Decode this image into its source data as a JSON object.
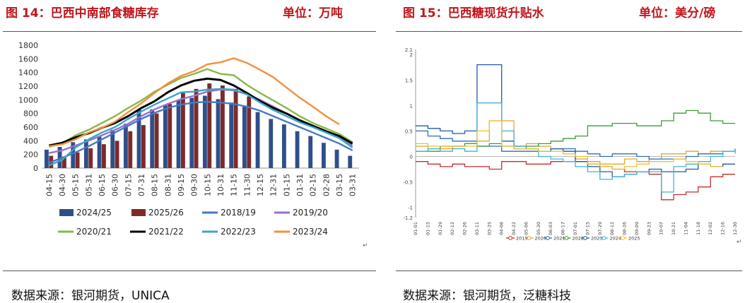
{
  "left": {
    "title": "图 14：巴西中南部食糖库存",
    "unit": "单位：万吨",
    "source": "数据来源：银河期货，UNICA",
    "corner_mark": "↵"
  },
  "right": {
    "title": "图 15：巴西糖现货升贴水",
    "unit": "单位：美分/磅",
    "source": "数据来源：银河期货，泛糖科技",
    "corner_mark": "↵"
  },
  "chart_data": [
    {
      "type": "bar+line",
      "title": "巴西中南部食糖库存",
      "ylabel": "万吨",
      "ylim": [
        0,
        1800
      ],
      "yticks": [
        0,
        200,
        400,
        600,
        800,
        1000,
        1200,
        1400,
        1600,
        1800
      ],
      "categories": [
        "04-15",
        "04-30",
        "05-15",
        "05-31",
        "06-15",
        "06-30",
        "07-15",
        "07-31",
        "08-15",
        "08-31",
        "09-15",
        "09-30",
        "10-15",
        "10-31",
        "11-15",
        "11-30",
        "12-15",
        "12-31",
        "01-15",
        "01-31",
        "02-15",
        "02-28",
        "03-15",
        "03-31"
      ],
      "bar_series": [
        {
          "name": "2024/25",
          "color": "#2f4f8a",
          "values": [
            270,
            310,
            380,
            420,
            470,
            560,
            650,
            860,
            860,
            920,
            1000,
            1030,
            1060,
            1010,
            960,
            900,
            820,
            720,
            640,
            540,
            470,
            370,
            270,
            180
          ]
        },
        {
          "name": "2025/26",
          "color": "#7d2a2a",
          "values": [
            180,
            170,
            230,
            290,
            350,
            400,
            540,
            630,
            800,
            940,
            1100,
            1160,
            1240,
            1210,
            1160,
            1050,
            null,
            null,
            null,
            null,
            null,
            null,
            null,
            null
          ]
        }
      ],
      "line_series": [
        {
          "name": "2018/19",
          "color": "#4a78c0",
          "values": [
            80,
            150,
            230,
            320,
            420,
            520,
            620,
            720,
            810,
            880,
            930,
            960,
            970,
            960,
            940,
            900,
            840,
            760,
            680,
            600,
            520,
            440,
            360,
            260
          ]
        },
        {
          "name": "2019/20",
          "color": "#9b6fd0",
          "values": [
            220,
            260,
            330,
            400,
            480,
            560,
            650,
            760,
            860,
            940,
            1010,
            1060,
            1120,
            1150,
            1140,
            1080,
            1000,
            900,
            800,
            700,
            610,
            520,
            440,
            330
          ]
        },
        {
          "name": "2020/21",
          "color": "#8ab848",
          "values": [
            310,
            360,
            480,
            560,
            660,
            760,
            880,
            990,
            1120,
            1220,
            1320,
            1380,
            1450,
            1380,
            1360,
            1220,
            1100,
            990,
            880,
            760,
            660,
            580,
            500,
            380
          ]
        },
        {
          "name": "2021/22",
          "color": "#000000",
          "values": [
            330,
            370,
            450,
            510,
            590,
            660,
            760,
            880,
            980,
            1110,
            1210,
            1280,
            1310,
            1290,
            1210,
            1100,
            980,
            880,
            800,
            700,
            620,
            540,
            470,
            360
          ]
        },
        {
          "name": "2022/23",
          "color": "#39a6c8",
          "values": [
            40,
            120,
            300,
            420,
            520,
            600,
            720,
            830,
            930,
            1020,
            1110,
            1120,
            1150,
            1160,
            1150,
            1080,
            960,
            850,
            760,
            670,
            600,
            520,
            440,
            300
          ]
        },
        {
          "name": "2023/24",
          "color": "#f2903c",
          "values": [
            320,
            350,
            420,
            520,
            590,
            680,
            820,
            950,
            1100,
            1240,
            1350,
            1420,
            1520,
            1550,
            1610,
            1540,
            1440,
            1330,
            1180,
            1030,
            900,
            760,
            640,
            null
          ]
        }
      ]
    },
    {
      "type": "line",
      "title": "巴西糖现货升贴水",
      "ylabel": "美分/磅",
      "ylim": [
        -1.2,
        2.1
      ],
      "yticks": [
        2.1,
        2,
        1.5,
        1,
        0.5,
        0,
        -0.5,
        -1,
        -1.2
      ],
      "ytick_labels": [
        "2.1",
        "2",
        "1.5",
        "1",
        "0.5",
        "0",
        "-0.5",
        "-1",
        "-1.2"
      ],
      "categories": [
        "01-01",
        "01-15",
        "01-29",
        "02-12",
        "02-26",
        "03-11",
        "03-25",
        "04-08",
        "04-22",
        "05-06",
        "05-20",
        "06-03",
        "06-17",
        "07-01",
        "07-15",
        "07-29",
        "08-12",
        "08-26",
        "09-09",
        "09-23",
        "10-07",
        "10-21",
        "11-04",
        "11-18",
        "12-02",
        "12-16",
        "12-30"
      ],
      "series": [
        {
          "name": "2019",
          "color": "#c0302e",
          "values": [
            -0.1,
            -0.15,
            -0.2,
            -0.15,
            -0.2,
            -0.2,
            -0.25,
            -0.1,
            -0.1,
            -0.15,
            -0.15,
            -0.1,
            -0.1,
            -0.1,
            -0.15,
            -0.2,
            -0.25,
            -0.3,
            -0.3,
            -0.35,
            -0.85,
            -0.75,
            -0.7,
            -0.6,
            -0.4,
            -0.35,
            -0.35
          ]
        },
        {
          "name": "2020",
          "color": "#e3a52b",
          "values": [
            0.2,
            0.15,
            0.15,
            0.2,
            0.25,
            0.3,
            0.7,
            0.7,
            0.2,
            0.25,
            0.2,
            0.15,
            0.1,
            -0.05,
            -0.1,
            -0.15,
            -0.15,
            -0.05,
            -0.1,
            -0.05,
            0.05,
            0.05,
            0.1,
            0.05,
            0.1,
            0.1,
            0.1
          ]
        },
        {
          "name": "2021",
          "color": "#2d6fb8",
          "values": [
            0.5,
            0.4,
            0.35,
            0.3,
            0.3,
            0.2,
            0.2,
            0.1,
            0.1,
            0.1,
            0.1,
            0.15,
            0.15,
            0.1,
            0.05,
            0.0,
            0.05,
            0.05,
            0.0,
            -0.05,
            -0.05,
            -0.05,
            0.0,
            0.05,
            0.05,
            0.1,
            0.15
          ]
        },
        {
          "name": "2022",
          "color": "#3f9a3a",
          "values": [
            0.1,
            0.1,
            0.2,
            0.2,
            0.25,
            0.2,
            0.25,
            0.2,
            0.15,
            0.2,
            0.25,
            0.3,
            0.35,
            0.4,
            0.6,
            0.6,
            0.65,
            0.65,
            0.6,
            0.6,
            0.7,
            0.85,
            0.9,
            0.85,
            0.7,
            0.65,
            0.65
          ]
        },
        {
          "name": "2023",
          "color": "#1f5aa8",
          "values": [
            0.6,
            0.55,
            0.5,
            0.45,
            0.5,
            1.8,
            1.8,
            0.3,
            0.2,
            0.15,
            0.1,
            0.15,
            0.1,
            -0.1,
            -0.2,
            -0.3,
            -0.4,
            -0.35,
            -0.3,
            -0.25,
            -0.3,
            -0.3,
            -0.25,
            -0.15,
            -0.2,
            -0.15,
            -0.15
          ]
        },
        {
          "name": "2024",
          "color": "#3fb3d6",
          "values": [
            0.1,
            0.15,
            0.1,
            0.15,
            0.1,
            1.05,
            1.05,
            0.5,
            0.2,
            0.15,
            0.0,
            -0.05,
            -0.1,
            -0.2,
            -0.3,
            -0.45,
            -0.4,
            -0.35,
            -0.3,
            -0.3,
            -0.7,
            -0.2,
            -0.15,
            -0.1,
            0.0,
            0.1,
            0.05
          ]
        },
        {
          "name": "2025",
          "color": "#f0c030",
          "values": [
            0.25,
            0.2,
            0.2,
            0.2,
            0.2,
            0.5,
            0.7,
            0.2,
            0.15,
            0.15,
            0.1,
            0.1,
            0.05,
            0.0,
            -0.15,
            -0.2,
            -0.25,
            -0.2,
            -0.15,
            -0.1,
            -0.1,
            -0.05,
            -0.1,
            -0.15,
            -0.2,
            -0.2,
            null
          ]
        }
      ]
    }
  ]
}
